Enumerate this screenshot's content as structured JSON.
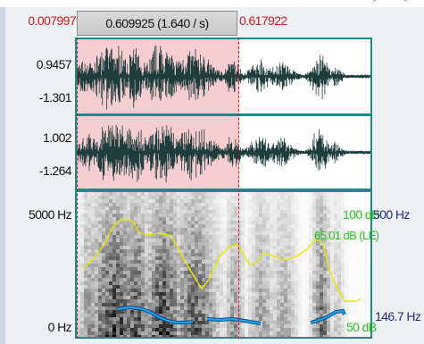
{
  "time_ruler": {
    "selection_start": "0.007997",
    "selection_duration": "0.609925 (1.640 / s)",
    "selection_end": "0.617922"
  },
  "waveform_1": {
    "max_label": "0.9457",
    "min_label": "-1.301"
  },
  "waveform_2": {
    "max_label": "1.002",
    "min_label": "-1.264"
  },
  "spectrogram": {
    "freq_top_label": "5000 Hz",
    "freq_bottom_label": "0 Hz",
    "intensity_top_label": "100 dB",
    "intensity_cursor_label": "65.01 dB (LE)",
    "intensity_bottom_label": "50 dB",
    "formant_top_label": "500 Hz",
    "pitch_bottom_label": "146.7 Hz"
  },
  "colors": {
    "selection_text": "#d0161a",
    "selection_shade": "#f6cdd0",
    "panel_border": "#1a8a8a",
    "waveform": "#1f3d3d",
    "intensity_line": "#e6e600",
    "pitch_line": "#19a6e8",
    "intensity_text": "#23c31c",
    "pitch_text": "#202a8a"
  }
}
